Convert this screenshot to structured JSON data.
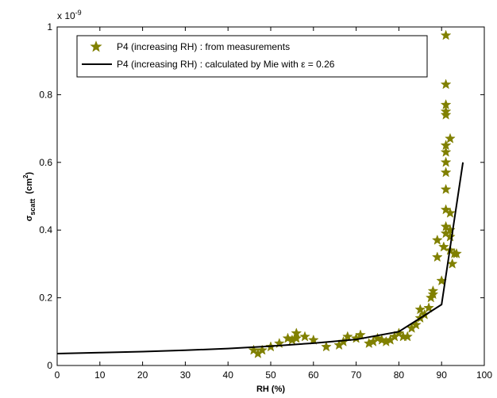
{
  "chart_data": {
    "type": "scatter",
    "x_label": "RH (%)",
    "y_label": {
      "symbol": "σ",
      "subscript": "scatt",
      "unit": "(cm",
      "superscript": "2",
      "close": ")"
    },
    "y_multiplier": {
      "base": "x 10",
      "exponent": "-9"
    },
    "xlim": [
      0,
      100
    ],
    "xticks": [
      0,
      10,
      20,
      30,
      40,
      50,
      60,
      70,
      80,
      90,
      100
    ],
    "ylim": [
      0,
      1
    ],
    "yticks": [
      0,
      0.2,
      0.4,
      0.6,
      0.8,
      1
    ],
    "legend": "upper left",
    "series": [
      {
        "name": "P4 (increasing RH) : from measurements",
        "type": "scatter",
        "color": "#808000",
        "x": [
          46,
          47,
          48,
          50,
          52,
          54,
          55,
          56,
          56,
          58,
          60,
          63,
          66,
          67,
          68,
          70,
          71,
          73,
          74,
          75,
          76,
          77,
          78,
          79,
          80,
          81,
          82,
          83,
          84,
          85,
          85,
          86,
          87,
          87.5,
          88,
          88,
          89,
          89,
          90,
          90.5,
          91,
          91,
          91,
          91,
          91,
          91,
          91,
          91,
          91,
          91,
          91,
          91,
          91,
          92,
          92,
          92,
          92,
          92,
          92.5,
          93,
          93.5
        ],
        "values": [
          0.045,
          0.035,
          0.045,
          0.055,
          0.065,
          0.08,
          0.075,
          0.095,
          0.08,
          0.085,
          0.075,
          0.055,
          0.06,
          0.07,
          0.085,
          0.08,
          0.09,
          0.065,
          0.07,
          0.08,
          0.075,
          0.07,
          0.075,
          0.085,
          0.095,
          0.085,
          0.085,
          0.11,
          0.12,
          0.14,
          0.165,
          0.15,
          0.17,
          0.2,
          0.21,
          0.22,
          0.32,
          0.37,
          0.25,
          0.35,
          0.39,
          0.41,
          0.46,
          0.52,
          0.57,
          0.6,
          0.63,
          0.65,
          0.75,
          0.74,
          0.77,
          0.83,
          0.975,
          0.4,
          0.38,
          0.34,
          0.67,
          0.45,
          0.3,
          0.33,
          0.33
        ]
      },
      {
        "name": "P4 (increasing RH) : calculated by Mie with ε = 0.26",
        "type": "line",
        "color": "#000000",
        "x": [
          0,
          10,
          20,
          30,
          40,
          50,
          60,
          70,
          80,
          85,
          90,
          95
        ],
        "values": [
          0.035,
          0.038,
          0.041,
          0.045,
          0.05,
          0.057,
          0.066,
          0.077,
          0.1,
          0.14,
          0.18,
          0.6
        ]
      }
    ]
  }
}
